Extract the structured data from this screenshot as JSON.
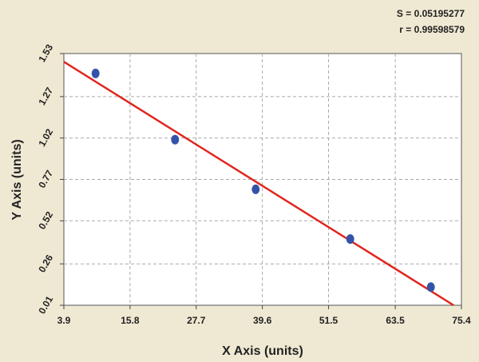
{
  "chart_data": {
    "type": "scatter",
    "x_label": "X Axis (units)",
    "y_label": "Y Axis (units)",
    "annotations": [
      "S = 0.05195277",
      "r = 0.99598579"
    ],
    "series": [
      {
        "color": "#3453a8",
        "x": [
          9.6,
          23.9,
          38.4,
          55.4,
          69.9
        ],
        "values": [
          1.41,
          1.01,
          0.71,
          0.41,
          0.12
        ]
      }
    ],
    "fit": {
      "color": "#e0261e",
      "x": [
        3.9,
        74.0
      ],
      "values": [
        1.48,
        0.01
      ]
    },
    "xlim": [
      3.9,
      75.4
    ],
    "xticks": [
      3.9,
      15.8,
      27.7,
      39.6,
      51.5,
      63.5,
      75.4
    ],
    "ylim": [
      0.01,
      1.53
    ],
    "yticks": [
      0.01,
      0.26,
      0.52,
      0.77,
      1.02,
      1.27,
      1.53
    ],
    "grid": true
  }
}
